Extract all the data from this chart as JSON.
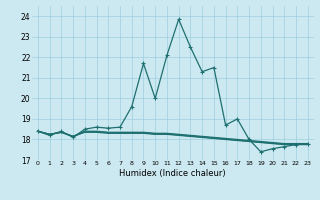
{
  "xlabel": "Humidex (Indice chaleur)",
  "bg_color": "#cce8f0",
  "grid_color": "#9ecfdf",
  "line_color": "#1e7070",
  "xlim": [
    -0.5,
    23.5
  ],
  "ylim": [
    17,
    24.5
  ],
  "yticks": [
    17,
    18,
    19,
    20,
    21,
    22,
    23,
    24
  ],
  "xticks": [
    0,
    1,
    2,
    3,
    4,
    5,
    6,
    7,
    8,
    9,
    10,
    11,
    12,
    13,
    14,
    15,
    16,
    17,
    18,
    19,
    20,
    21,
    22,
    23
  ],
  "lines": [
    {
      "x": [
        0,
        1,
        2,
        3,
        4,
        5,
        6,
        7,
        8,
        9,
        10,
        11,
        12,
        13,
        14,
        15,
        16,
        17,
        18,
        19,
        20,
        21,
        22,
        23
      ],
      "y": [
        18.4,
        18.2,
        18.4,
        18.1,
        18.5,
        18.6,
        18.55,
        18.6,
        19.6,
        21.7,
        20.0,
        22.1,
        23.85,
        22.5,
        21.3,
        21.5,
        18.7,
        19.0,
        18.0,
        17.4,
        17.55,
        17.65,
        17.75,
        17.8
      ],
      "marker": "+",
      "lw": 0.9
    },
    {
      "x": [
        0,
        1,
        2,
        3,
        4,
        5,
        6,
        7,
        8,
        9,
        10,
        11,
        12,
        13,
        14,
        15,
        16,
        17,
        18,
        19,
        20,
        21,
        22,
        23
      ],
      "y": [
        18.4,
        18.25,
        18.35,
        18.15,
        18.35,
        18.35,
        18.3,
        18.3,
        18.3,
        18.3,
        18.25,
        18.25,
        18.2,
        18.15,
        18.1,
        18.05,
        18.0,
        17.95,
        17.9,
        17.85,
        17.8,
        17.75,
        17.75,
        17.75
      ],
      "marker": null,
      "lw": 0.9
    },
    {
      "x": [
        0,
        1,
        2,
        3,
        4,
        5,
        6,
        7,
        8,
        9,
        10,
        11,
        12,
        13,
        14,
        15,
        16,
        17,
        18,
        19,
        20,
        21,
        22,
        23
      ],
      "y": [
        18.4,
        18.25,
        18.35,
        18.15,
        18.4,
        18.4,
        18.35,
        18.35,
        18.35,
        18.35,
        18.3,
        18.3,
        18.25,
        18.2,
        18.15,
        18.1,
        18.05,
        18.0,
        17.95,
        17.9,
        17.85,
        17.8,
        17.8,
        17.8
      ],
      "marker": null,
      "lw": 0.9
    },
    {
      "x": [
        0,
        1,
        2,
        3,
        4,
        5,
        6,
        7,
        8,
        9,
        10,
        11,
        12,
        13,
        14,
        15,
        16,
        17,
        18,
        19,
        20,
        21,
        22,
        23
      ],
      "y": [
        18.4,
        18.25,
        18.35,
        18.15,
        18.38,
        18.38,
        18.33,
        18.33,
        18.33,
        18.33,
        18.27,
        18.27,
        18.22,
        18.17,
        18.12,
        18.07,
        18.02,
        17.97,
        17.92,
        17.87,
        17.82,
        17.77,
        17.77,
        17.77
      ],
      "marker": null,
      "lw": 0.9
    }
  ]
}
